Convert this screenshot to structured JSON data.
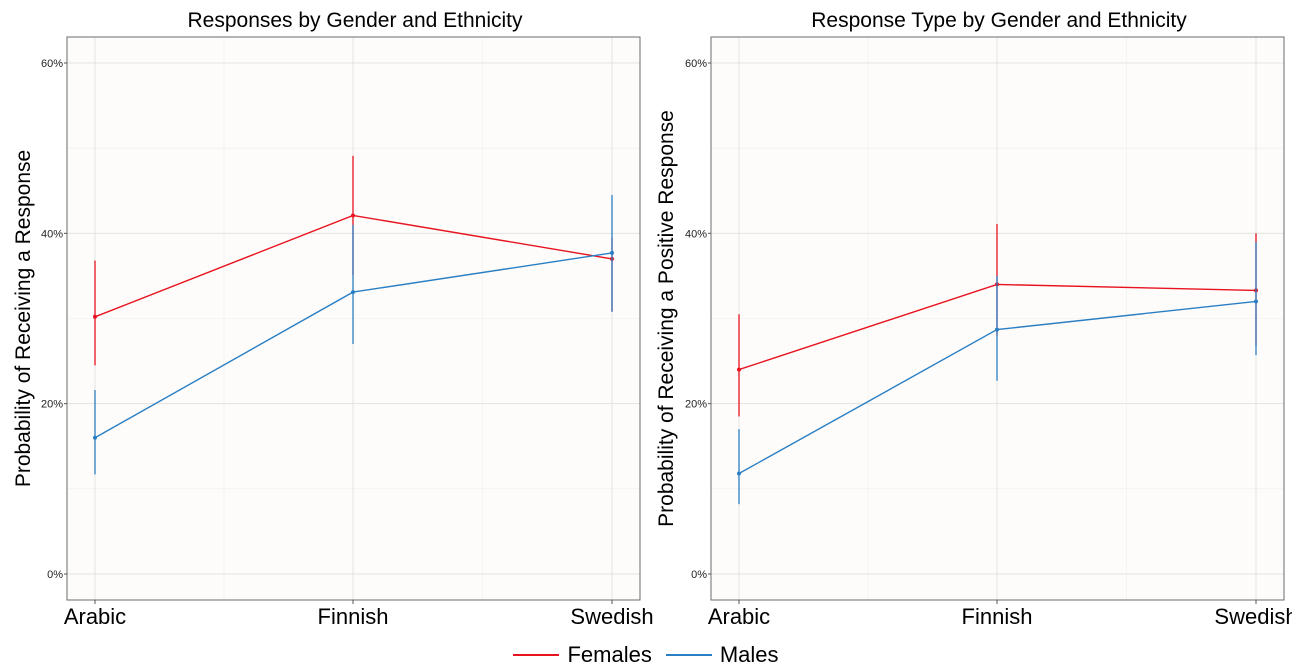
{
  "chart_data": [
    {
      "type": "line",
      "title": "Responses by Gender and Ethnicity",
      "xlabel": "",
      "ylabel": "Probability of Receiving a Response",
      "categories": [
        "Arabic",
        "Finnish",
        "Swedish"
      ],
      "ylim": [
        0,
        0.63
      ],
      "yticks": [
        0,
        0.2,
        0.4,
        0.6
      ],
      "ytick_labels": [
        "0%",
        "20%",
        "40%",
        "60%"
      ],
      "grid": true,
      "series": [
        {
          "name": "Females",
          "color": "#e8131f",
          "values": [
            0.302,
            0.421,
            0.37
          ],
          "lower": [
            0.245,
            0.351,
            0.308
          ],
          "upper": [
            0.368,
            0.491,
            0.395
          ]
        },
        {
          "name": "Males",
          "color": "#2a7fc4",
          "values": [
            0.16,
            0.331,
            0.377
          ],
          "lower": [
            0.117,
            0.27,
            0.308
          ],
          "upper": [
            0.216,
            0.41,
            0.445
          ]
        }
      ]
    },
    {
      "type": "line",
      "title": "Response Type by Gender and Ethnicity",
      "xlabel": "",
      "ylabel": "Probability of Receiving a Positive Response",
      "categories": [
        "Arabic",
        "Finnish",
        "Swedish"
      ],
      "ylim": [
        0,
        0.63
      ],
      "yticks": [
        0,
        0.2,
        0.4,
        0.6
      ],
      "ytick_labels": [
        "0%",
        "20%",
        "40%",
        "60%"
      ],
      "grid": true,
      "series": [
        {
          "name": "Females",
          "color": "#e8131f",
          "values": [
            0.24,
            0.34,
            0.333
          ],
          "lower": [
            0.185,
            0.28,
            0.268
          ],
          "upper": [
            0.305,
            0.411,
            0.4
          ]
        },
        {
          "name": "Males",
          "color": "#2a7fc4",
          "values": [
            0.118,
            0.287,
            0.32
          ],
          "lower": [
            0.082,
            0.227,
            0.257
          ],
          "upper": [
            0.17,
            0.35,
            0.39
          ]
        }
      ]
    }
  ],
  "legend": {
    "placement": "bottom",
    "items": [
      {
        "label": "Females",
        "color": "#e8131f"
      },
      {
        "label": "Males",
        "color": "#2a7fc4"
      }
    ]
  }
}
